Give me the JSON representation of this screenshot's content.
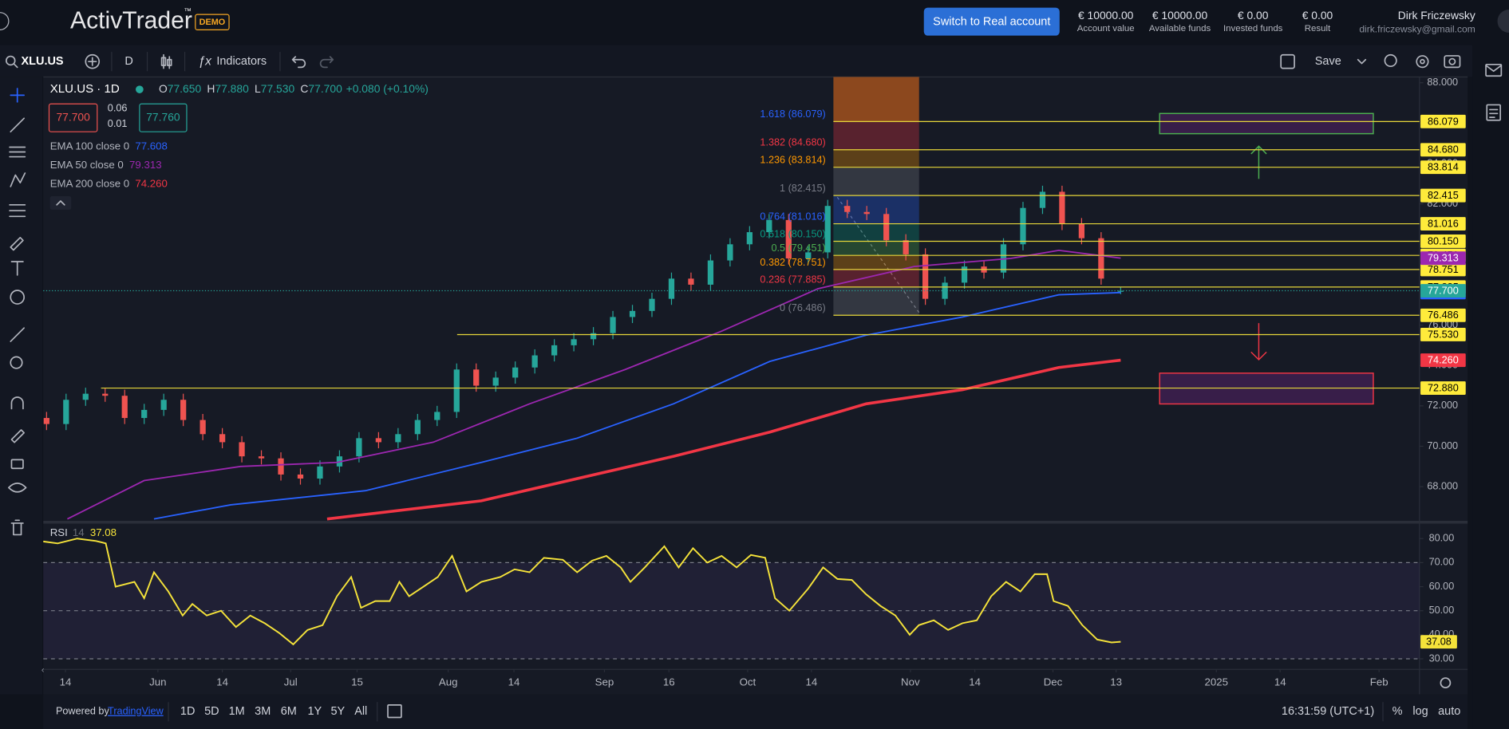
{
  "header": {
    "logo": "ActivTrader",
    "tm": "™",
    "demo": "DEMO",
    "button": "Switch to Real account",
    "stats": [
      {
        "value": "€ 10000.00",
        "label": "Account value"
      },
      {
        "value": "€ 10000.00",
        "label": "Available funds"
      },
      {
        "value": "€ 0.00",
        "label": "Invested funds"
      },
      {
        "value": "€ 0.00",
        "label": "Result"
      }
    ],
    "user": {
      "name": "Dirk Friczewsky",
      "email": "dirk.friczewsky@gmail.com"
    }
  },
  "toolbar": {
    "symbol": "XLU.US",
    "interval": "D",
    "indicators": "Indicators",
    "save": "Save"
  },
  "legend": {
    "title": "XLU.US · 1D",
    "ohlc": [
      {
        "k": "O",
        "v": "77.650"
      },
      {
        "k": "H",
        "v": "77.880"
      },
      {
        "k": "L",
        "v": "77.530"
      },
      {
        "k": "C",
        "v": "77.700"
      }
    ],
    "change": "+0.080 (+0.10%)",
    "bid": "77.700",
    "spread_top": "0.06",
    "spread_bottom": "0.01",
    "ask": "77.760"
  },
  "chart_data": [
    {
      "type": "candlestick",
      "up_color": "#26a69a",
      "down_color": "#ef5350",
      "x": [
        0,
        3,
        6,
        9,
        12,
        15,
        18,
        21,
        24,
        27,
        30,
        33,
        36,
        39,
        42,
        45,
        48,
        51,
        54,
        57,
        60,
        63,
        66,
        69,
        72,
        75,
        78,
        81,
        84,
        87,
        90,
        93,
        96,
        99,
        102,
        105,
        108,
        111,
        114,
        117,
        120,
        123,
        126,
        129,
        132,
        135,
        138,
        141,
        144,
        147,
        150,
        153,
        156,
        159,
        162,
        165
      ],
      "open": [
        71.4,
        71.1,
        72.3,
        72.6,
        72.5,
        71.4,
        71.8,
        72.3,
        71.3,
        70.6,
        70.2,
        69.5,
        69.4,
        68.6,
        68.4,
        69.0,
        69.5,
        70.4,
        70.2,
        70.6,
        71.3,
        71.7,
        73.8,
        73.0,
        73.4,
        73.9,
        74.5,
        75.0,
        75.3,
        75.6,
        76.4,
        76.7,
        77.3,
        78.3,
        78.0,
        79.2,
        80.0,
        80.6,
        81.2,
        79.3,
        79.6,
        81.9,
        81.6,
        81.5,
        80.2,
        79.5,
        77.3,
        78.1,
        78.9,
        78.6,
        80.0,
        81.8,
        82.6,
        81.0,
        80.3,
        77.65
      ],
      "high": [
        71.7,
        72.6,
        72.9,
        72.9,
        72.8,
        72.1,
        72.6,
        72.6,
        71.6,
        70.9,
        70.5,
        69.8,
        69.7,
        68.9,
        69.3,
        69.8,
        70.7,
        70.7,
        70.9,
        71.6,
        72.0,
        74.1,
        74.1,
        73.7,
        74.2,
        74.8,
        75.3,
        75.6,
        75.9,
        76.7,
        77.0,
        77.6,
        78.6,
        78.6,
        79.5,
        80.3,
        80.9,
        81.5,
        81.5,
        79.9,
        82.2,
        82.2,
        81.9,
        81.8,
        80.5,
        79.8,
        78.4,
        79.2,
        79.2,
        80.3,
        82.1,
        82.9,
        82.9,
        81.3,
        80.6,
        77.88
      ],
      "low": [
        70.8,
        70.8,
        72.0,
        72.2,
        71.1,
        71.1,
        71.5,
        71.0,
        70.3,
        69.9,
        69.2,
        69.1,
        68.3,
        68.1,
        68.1,
        68.7,
        69.2,
        69.9,
        69.9,
        70.3,
        71.0,
        71.4,
        72.7,
        72.7,
        73.1,
        73.6,
        74.2,
        74.7,
        75.0,
        75.3,
        76.1,
        76.4,
        77.0,
        77.7,
        77.7,
        78.9,
        79.7,
        80.3,
        79.0,
        79.0,
        79.3,
        81.3,
        81.2,
        79.9,
        79.2,
        77.0,
        77.0,
        77.8,
        78.3,
        78.3,
        79.7,
        81.5,
        80.7,
        80.0,
        78.0,
        77.53
      ],
      "close": [
        71.1,
        72.3,
        72.6,
        72.5,
        71.4,
        71.8,
        72.3,
        71.3,
        70.6,
        70.2,
        69.5,
        69.4,
        68.6,
        68.4,
        69.0,
        69.5,
        70.4,
        70.2,
        70.6,
        71.3,
        71.7,
        73.8,
        73.0,
        73.4,
        73.9,
        74.5,
        75.0,
        75.3,
        75.6,
        76.4,
        76.7,
        77.3,
        78.3,
        78.0,
        79.2,
        80.0,
        80.6,
        81.2,
        79.3,
        79.6,
        81.9,
        81.6,
        81.5,
        80.2,
        79.5,
        77.3,
        78.1,
        78.9,
        78.6,
        80.0,
        81.8,
        82.6,
        81.0,
        80.3,
        78.3,
        77.7
      ],
      "series": [
        {
          "name": "EMA 100 close 0",
          "color": "#2962ff",
          "width": 1.5,
          "last_label": "77.608",
          "x": [
            16.5,
            28.3,
            49,
            66.8,
            81.5,
            96.3,
            111.1,
            125.9,
            140.7,
            155.5,
            165
          ],
          "values": [
            66.4,
            67.1,
            67.8,
            69.2,
            70.4,
            72.1,
            74.2,
            75.5,
            76.4,
            77.5,
            77.608
          ]
        },
        {
          "name": "EMA 50 close 0",
          "color": "#9c27b0",
          "width": 1.5,
          "last_label": "79.313",
          "x": [
            3.2,
            15,
            29.8,
            44.6,
            59.4,
            74.2,
            88.9,
            103.7,
            118.5,
            133.3,
            148.1,
            155.5,
            165
          ],
          "values": [
            66.4,
            68.3,
            69.0,
            69.2,
            70.2,
            72.1,
            73.8,
            75.7,
            77.8,
            78.9,
            79.3,
            79.7,
            79.313
          ]
        },
        {
          "name": "EMA 200 close 0",
          "color": "#f23645",
          "width": 3,
          "last_label": "74.260",
          "x": [
            43.1,
            66.8,
            96.3,
            111.1,
            125.9,
            140.7,
            155.5,
            165
          ],
          "values": [
            66.4,
            67.3,
            69.5,
            70.7,
            72.1,
            72.8,
            73.9,
            74.26
          ]
        }
      ],
      "last_price": {
        "value": 77.7,
        "label": "77.700",
        "color": "#26a69a"
      },
      "fib_top_color": "#b4581c",
      "fib": [
        {
          "ratio_label": "1.618 (86.079)",
          "value": 86.079,
          "label": "86.079",
          "color": "#2962ff"
        },
        {
          "ratio_label": "1.382 (84.680)",
          "value": 84.68,
          "label": "84.680",
          "color": "#f23645"
        },
        {
          "ratio_label": "1.236 (83.814)",
          "value": 83.814,
          "label": "83.814",
          "color": "#ff9800"
        },
        {
          "ratio_label": "1 (82.415)",
          "value": 82.415,
          "label": "82.415",
          "color": "#787b86"
        },
        {
          "ratio_label": "0.764 (81.016)",
          "value": 81.016,
          "label": "81.016",
          "color": "#2962ff"
        },
        {
          "ratio_label": "0.618 (80.150)",
          "value": 80.15,
          "label": "80.150",
          "color": "#089981"
        },
        {
          "ratio_label": "0.5 (79.451)",
          "value": 79.451,
          "label": "79.451",
          "color": "#4caf50"
        },
        {
          "ratio_label": "0.382 (78.751)",
          "value": 78.751,
          "label": "78.751",
          "color": "#ff9800"
        },
        {
          "ratio_label": "0.236 (77.885)",
          "value": 77.885,
          "label": "77.885",
          "color": "#f23645"
        },
        {
          "ratio_label": "0 (76.486)",
          "value": 76.486,
          "label": "76.486",
          "color": "#787b86"
        }
      ],
      "hlines": [
        {
          "value": 75.53,
          "label": "75.530"
        },
        {
          "value": 72.88,
          "label": "72.880"
        }
      ],
      "line_color": "#e6d63a",
      "xlim": [
        -0.5,
        218.3
      ],
      "xticks": [
        {
          "value": 2.9,
          "label": "14"
        },
        {
          "value": 17.1,
          "label": "Jun"
        },
        {
          "value": 27,
          "label": "14"
        },
        {
          "value": 37.5,
          "label": "Jul"
        },
        {
          "value": 47.7,
          "label": "15"
        },
        {
          "value": 61.7,
          "label": "Aug"
        },
        {
          "value": 71.8,
          "label": "14"
        },
        {
          "value": 85.7,
          "label": "Sep"
        },
        {
          "value": 95.6,
          "label": "16"
        },
        {
          "value": 107.7,
          "label": "Oct"
        },
        {
          "value": 117.5,
          "label": "14"
        },
        {
          "value": 132.7,
          "label": "Nov"
        },
        {
          "value": 142.6,
          "label": "14"
        },
        {
          "value": 154.6,
          "label": "Dec"
        },
        {
          "value": 164.3,
          "label": "13"
        },
        {
          "value": 179.7,
          "label": "2025"
        },
        {
          "value": 189.5,
          "label": "14"
        },
        {
          "value": 204.7,
          "label": "Feb"
        }
      ],
      "ylim": [
        66.381,
        88.286
      ],
      "yticks": [
        {
          "value": 68,
          "label": "68.000"
        },
        {
          "value": 70,
          "label": "70.000"
        },
        {
          "value": 72,
          "label": "72.000"
        },
        {
          "value": 74,
          "label": "74.000"
        },
        {
          "value": 76,
          "label": "76.000"
        },
        {
          "value": 78,
          "label": "78.000"
        },
        {
          "value": 80,
          "label": "80.000"
        },
        {
          "value": 82,
          "label": "82.000"
        },
        {
          "value": 84,
          "label": "84.000"
        },
        {
          "value": 86,
          "label": "86.000"
        },
        {
          "value": 88,
          "label": "88.000"
        }
      ]
    },
    {
      "type": "line",
      "name": "RSI",
      "params": "14",
      "last_label": "37.08",
      "color": "#f5e33a",
      "x": [
        -0.5,
        1.7,
        4.7,
        7.6,
        9.1,
        10.6,
        13.5,
        15,
        16.5,
        18.7,
        20.9,
        22.4,
        24.6,
        26.8,
        29.1,
        31.3,
        33.5,
        35.7,
        37.9,
        40.1,
        42.4,
        44.6,
        46.8,
        48.3,
        50.5,
        52.7,
        54.2,
        55.7,
        57.9,
        60.1,
        62.3,
        64.5,
        66.8,
        69.7,
        71.9,
        74.2,
        76.4,
        79.3,
        81.5,
        83.8,
        86,
        88.2,
        89.7,
        91.9,
        94.9,
        97.1,
        99.3,
        101.5,
        103.7,
        106,
        108.2,
        110.4,
        111.9,
        114.1,
        117,
        119.3,
        121.5,
        123.7,
        125.9,
        128.1,
        130.4,
        132.6,
        134,
        136.3,
        138.5,
        140.7,
        142.9,
        145.1,
        147.4,
        149.6,
        151.8,
        153.7,
        154.7,
        156.9,
        159.1,
        161.4,
        163.6,
        165
      ],
      "values": [
        78.8,
        78,
        80,
        79,
        78,
        60,
        62,
        55.2,
        66,
        58,
        48,
        52.8,
        48,
        50,
        43.2,
        48,
        44.8,
        40.8,
        36,
        42,
        44,
        56,
        64,
        51.2,
        54,
        54,
        62,
        56,
        60,
        64,
        72.8,
        58,
        62,
        64,
        67.2,
        66,
        72,
        71.2,
        66,
        70.8,
        72.8,
        68,
        62,
        68,
        76.8,
        68,
        76,
        70,
        72.8,
        68,
        73.2,
        72,
        55.2,
        50,
        59.2,
        68,
        63.2,
        62.8,
        56.8,
        52,
        48,
        40,
        44,
        46,
        42,
        44.8,
        46,
        56,
        62,
        58,
        65.2,
        65.2,
        54,
        52,
        44,
        38,
        36.8,
        37.08
      ],
      "levels": [
        70,
        50,
        30
      ],
      "band_color": "#7e57c2",
      "xlim": [
        -0.5,
        218.3
      ],
      "ylim": [
        26,
        86
      ],
      "yticks": [
        {
          "value": 30,
          "label": "30.00"
        },
        {
          "value": 40,
          "label": "40.00"
        },
        {
          "value": 50,
          "label": "50.00"
        },
        {
          "value": 60,
          "label": "60.00"
        },
        {
          "value": 70,
          "label": "70.00"
        },
        {
          "value": 80,
          "label": "80.00"
        }
      ]
    }
  ],
  "footer": {
    "powered": "Powered by",
    "link": "TradingView",
    "ranges": [
      "1D",
      "5D",
      "1M",
      "3M",
      "6M",
      "1Y",
      "5Y",
      "All"
    ],
    "time": "16:31:59 (UTC+1)",
    "options": [
      "%",
      "log",
      "auto"
    ]
  }
}
